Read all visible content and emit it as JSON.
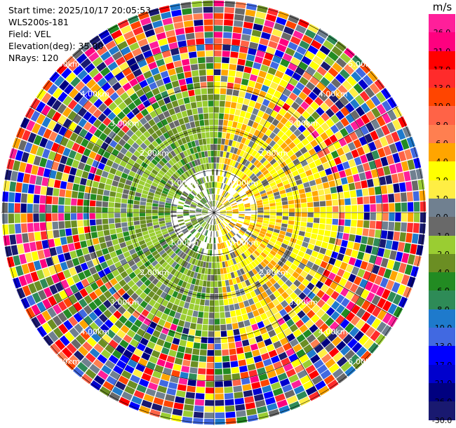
{
  "info": {
    "start_time": "Start time: 2025/10/17 20:05:53",
    "instrument": "WLS200s-181",
    "field": "Field: VEL",
    "elevation": "Elevation(deg): 35.00",
    "nrays": "NRays: 120"
  },
  "ppi": {
    "range_labels": [
      "1.00km",
      "2.00km",
      "3.00km",
      "4.00km",
      "5.00km"
    ],
    "ring_label_color": "#ffffff",
    "grid_color": "#000000",
    "n_rays": 120
  },
  "colorbar": {
    "unit": "m/s",
    "levels": [
      {
        "label": "26.0",
        "color": "#ff1f9a"
      },
      {
        "label": "21.0",
        "color": "#ff007f"
      },
      {
        "label": "17.0",
        "color": "#ff0000"
      },
      {
        "label": "13.0",
        "color": "#ff2b2b"
      },
      {
        "label": "10.0",
        "color": "#ff4500"
      },
      {
        "label": "8.0",
        "color": "#ff6347"
      },
      {
        "label": "6.0",
        "color": "#ff7f50"
      },
      {
        "label": "4.0",
        "color": "#ffa500"
      },
      {
        "label": "2.0",
        "color": "#ffff00"
      },
      {
        "label": "1.0",
        "color": "#ffee44"
      },
      {
        "label": "0.0",
        "color": "#708090"
      },
      {
        "label": "-1.0",
        "color": "#696969"
      },
      {
        "label": "-2.0",
        "color": "#9acd32"
      },
      {
        "label": "-4.0",
        "color": "#6b8e23"
      },
      {
        "label": "-6.0",
        "color": "#228b22"
      },
      {
        "label": "-8.0",
        "color": "#2e8b57"
      },
      {
        "label": "-10.0",
        "color": "#1e7acc"
      },
      {
        "label": "-13.0",
        "color": "#4169e1"
      },
      {
        "label": "-17.0",
        "color": "#0000ff"
      },
      {
        "label": "-21.0",
        "color": "#0000cd"
      },
      {
        "label": "-26.0",
        "color": "#000080"
      },
      {
        "label": "-30.0",
        "color": "#191970"
      }
    ]
  }
}
